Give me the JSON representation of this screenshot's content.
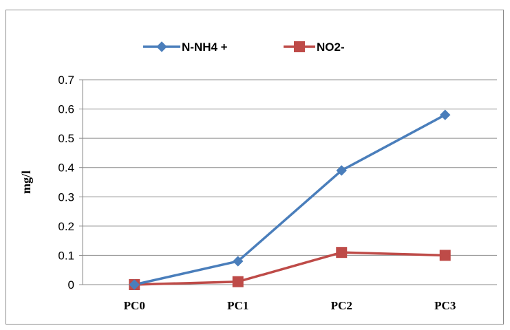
{
  "chart_data": {
    "type": "line",
    "categories": [
      "PC0",
      "PC1",
      "PC2",
      "PC3"
    ],
    "series": [
      {
        "name": "N-NH4 +",
        "values": [
          0,
          0.08,
          0.39,
          0.58
        ],
        "color": "#4A7EBB",
        "marker": "diamond"
      },
      {
        "name": "NO2-",
        "values": [
          0,
          0.01,
          0.11,
          0.1
        ],
        "color": "#BE4B48",
        "marker": "square"
      }
    ],
    "ylabel": "mg/l",
    "xlabel": "",
    "ylim": [
      0,
      0.7
    ],
    "yticks": [
      "0",
      "0.1",
      "0.2",
      "0.3",
      "0.4",
      "0.5",
      "0.6",
      "0.7"
    ],
    "grid": true,
    "legend_position": "top"
  }
}
